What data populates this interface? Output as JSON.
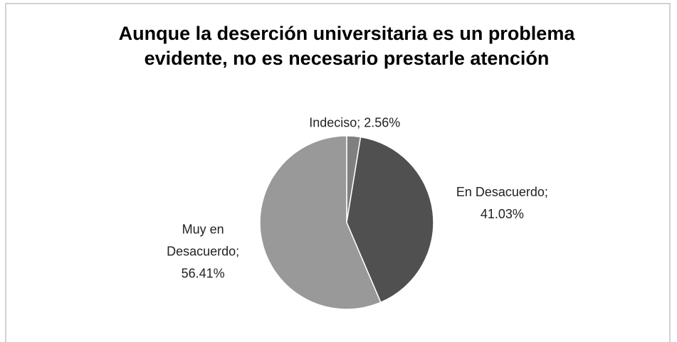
{
  "chart_data": {
    "type": "pie",
    "title": "Aunque la deserción universitaria es un problema evidente, no es necesario prestarle atención",
    "values": [
      2.56,
      41.03,
      56.41
    ],
    "value_labels": [
      "Indeciso; 2.56%",
      "En Desacuerdo; 41.03%",
      "Muy en Desacuerdo; 56.41%"
    ],
    "colors": [
      "#808080",
      "#505050",
      "#999999"
    ]
  }
}
